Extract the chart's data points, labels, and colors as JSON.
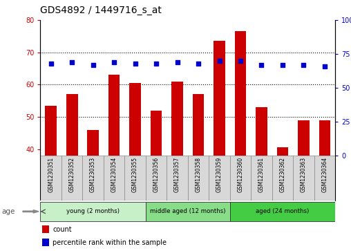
{
  "title": "GDS4892 / 1449716_s_at",
  "samples": [
    "GSM1230351",
    "GSM1230352",
    "GSM1230353",
    "GSM1230354",
    "GSM1230355",
    "GSM1230356",
    "GSM1230357",
    "GSM1230358",
    "GSM1230359",
    "GSM1230360",
    "GSM1230361",
    "GSM1230362",
    "GSM1230363",
    "GSM1230364"
  ],
  "counts": [
    53.5,
    57.0,
    46.0,
    63.0,
    60.5,
    52.0,
    61.0,
    57.0,
    73.5,
    76.5,
    53.0,
    40.5,
    49.0,
    49.0
  ],
  "percentiles": [
    68,
    69,
    67,
    69,
    68,
    68,
    69,
    68,
    70,
    70,
    67,
    67,
    67,
    66
  ],
  "bar_color": "#cc0000",
  "dot_color": "#0000cc",
  "ylim_left": [
    38,
    80
  ],
  "ylim_right": [
    0,
    100
  ],
  "yticks_left": [
    40,
    50,
    60,
    70,
    80
  ],
  "yticks_right": [
    0,
    25,
    50,
    75,
    100
  ],
  "groups": [
    {
      "label": "young (2 months)",
      "start": 0,
      "end": 5
    },
    {
      "label": "middle aged (12 months)",
      "start": 5,
      "end": 9
    },
    {
      "label": "aged (24 months)",
      "start": 9,
      "end": 14
    }
  ],
  "group_colors": [
    "#c8f0c8",
    "#88dd88",
    "#44cc44"
  ],
  "sample_box_color": "#d8d8d8",
  "legend_count_label": "count",
  "legend_percentile_label": "percentile rank within the sample",
  "age_label": "age",
  "title_fontsize": 10,
  "tick_fontsize": 7,
  "bar_width": 0.55
}
